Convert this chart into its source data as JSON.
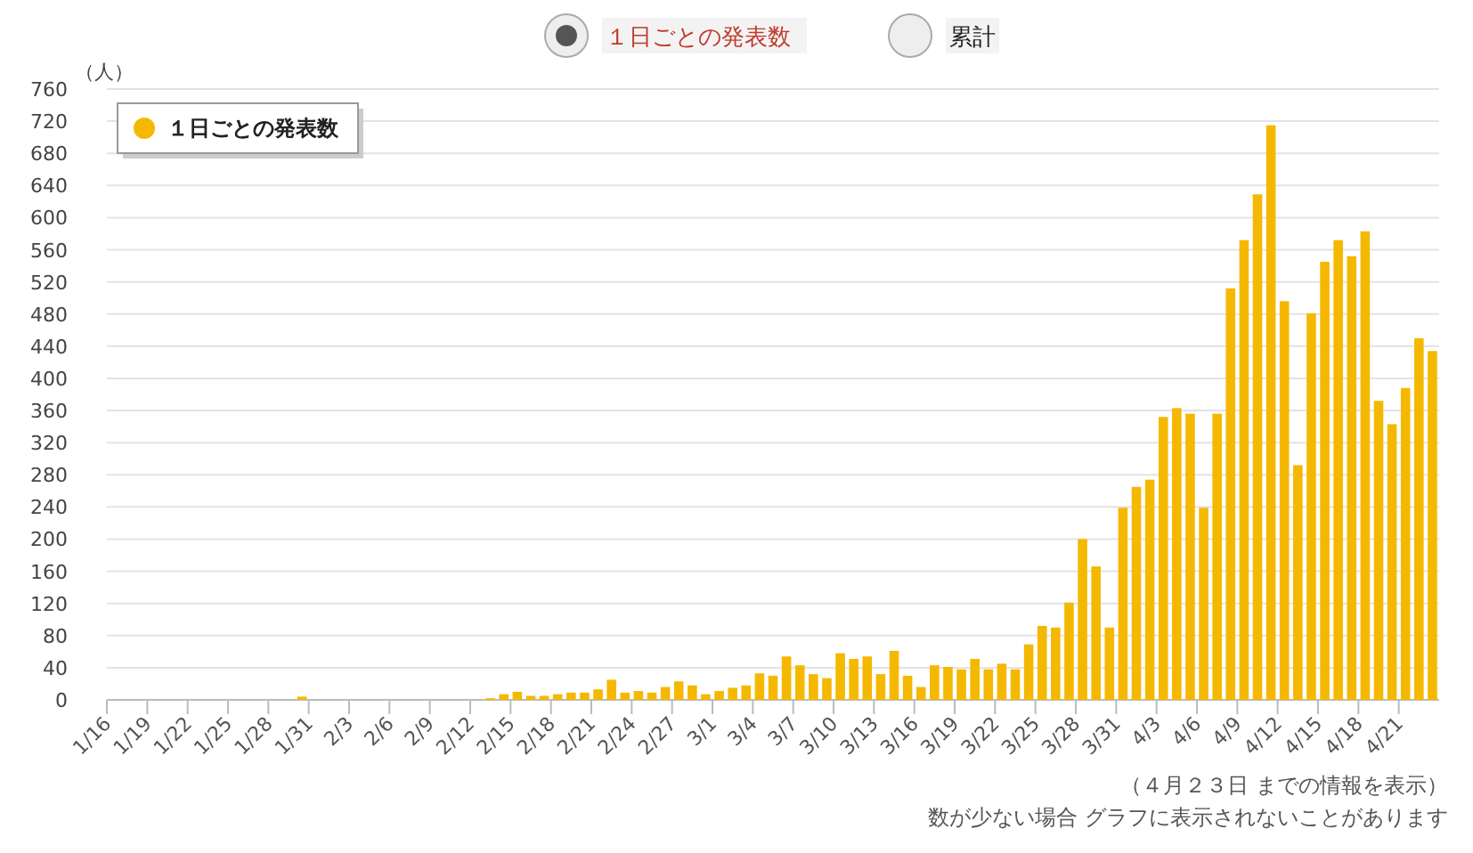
{
  "chart_data": {
    "type": "bar",
    "ylabel": "（人）",
    "categories": [
      "1/16",
      null,
      null,
      "1/19",
      null,
      null,
      "1/22",
      null,
      null,
      "1/25",
      null,
      null,
      "1/28",
      null,
      null,
      "1/31",
      null,
      null,
      "2/3",
      null,
      null,
      "2/6",
      null,
      null,
      "2/9",
      null,
      null,
      "2/12",
      null,
      null,
      "2/15",
      null,
      null,
      "2/18",
      null,
      null,
      "2/21",
      null,
      null,
      "2/24",
      null,
      null,
      "2/27",
      null,
      null,
      "3/1",
      null,
      null,
      "3/4",
      null,
      null,
      "3/7",
      null,
      null,
      "3/10",
      null,
      null,
      "3/13",
      null,
      null,
      "3/16",
      null,
      null,
      "3/19",
      null,
      null,
      "3/22",
      null,
      null,
      "3/25",
      null,
      null,
      "3/28",
      null,
      null,
      "3/31",
      null,
      null,
      "4/3",
      null,
      null,
      "4/6",
      null,
      null,
      "4/9",
      null,
      null,
      "4/12",
      null,
      null,
      "4/15",
      null,
      null,
      "4/18",
      null,
      null,
      "4/21",
      null,
      null
    ],
    "series": [
      {
        "name": "１日ごとの発表数",
        "color": "#f5b800",
        "values": [
          0,
          0,
          0,
          0,
          0,
          0,
          0,
          0,
          0,
          0,
          0,
          0,
          0,
          0,
          4,
          0,
          0,
          0,
          0,
          0,
          0,
          0,
          0,
          0,
          0,
          0,
          0,
          0,
          2,
          7,
          10,
          5,
          5,
          7,
          9,
          9,
          13,
          25,
          9,
          11,
          9,
          16,
          23,
          18,
          7,
          11,
          15,
          18,
          33,
          30,
          54,
          43,
          32,
          27,
          58,
          51,
          54,
          32,
          61,
          30,
          16,
          43,
          41,
          38,
          51,
          38,
          45,
          38,
          69,
          92,
          90,
          121,
          200,
          166,
          90,
          239,
          265,
          274,
          352,
          363,
          356,
          239,
          356,
          512,
          572,
          629,
          715,
          496,
          292,
          481,
          545,
          572,
          552,
          583,
          372,
          343,
          388,
          450,
          434
        ]
      }
    ],
    "ylim": [
      0,
      760
    ],
    "yticks": [
      0,
      40,
      80,
      120,
      160,
      200,
      240,
      280,
      320,
      360,
      400,
      440,
      480,
      520,
      560,
      600,
      640,
      680,
      720,
      760
    ],
    "grid": "y",
    "legend": "top left",
    "annotations": [
      "１日ごとの発表数",
      "累計",
      "（４月２３日 までの情報を表示）",
      "数が少ない場合 グラフに表示されないことがあります"
    ]
  }
}
